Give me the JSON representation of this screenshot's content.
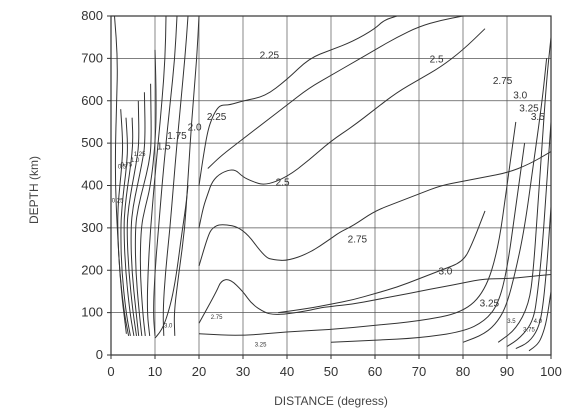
{
  "chart_data": {
    "type": "line",
    "title": "",
    "xlabel": "DISTANCE (degress)",
    "ylabel": "DEPTH (km)",
    "xlim": [
      0,
      100
    ],
    "ylim": [
      0,
      800
    ],
    "x_ticks": [
      0,
      10,
      20,
      30,
      40,
      50,
      60,
      70,
      80,
      90,
      100
    ],
    "y_ticks": [
      0,
      100,
      200,
      300,
      400,
      500,
      600,
      700,
      800
    ],
    "grid": true,
    "series": [
      {
        "name": "",
        "x": [
          0.8,
          1.5,
          1.3,
          1.0,
          1.0,
          1.4,
          2.3,
          3.5
        ],
        "y": [
          800,
          700,
          600,
          500,
          400,
          300,
          150,
          50
        ]
      },
      {
        "name": "",
        "x": [
          2.2,
          2.7,
          2.5,
          2.0,
          1.6,
          1.5,
          1.9,
          3.0,
          4.0
        ],
        "y": [
          580,
          500,
          450,
          400,
          350,
          300,
          200,
          100,
          45
        ]
      },
      {
        "name": "",
        "x": [
          3.4,
          3.8,
          3.6,
          3.0,
          2.5,
          2.2,
          2.4,
          3.4,
          4.4
        ],
        "y": [
          560,
          500,
          450,
          400,
          350,
          300,
          200,
          100,
          45
        ]
      },
      {
        "name": "",
        "x": [
          4.8,
          5.0,
          4.5,
          3.8,
          3.2,
          2.9,
          3.3,
          4.3,
          5.2
        ],
        "y": [
          560,
          500,
          450,
          400,
          350,
          300,
          200,
          100,
          45
        ]
      },
      {
        "name": "",
        "x": [
          6.2,
          6.4,
          5.7,
          4.8,
          4.0,
          3.6,
          4.0,
          5.0,
          5.8
        ],
        "y": [
          600,
          500,
          450,
          400,
          350,
          300,
          200,
          100,
          45
        ]
      },
      {
        "name": "",
        "x": [
          7.6,
          7.8,
          7.0,
          6.0,
          5.0,
          4.5,
          4.7,
          5.7,
          6.3
        ],
        "y": [
          620,
          500,
          450,
          400,
          350,
          300,
          200,
          100,
          45
        ]
      },
      {
        "name": "",
        "x": [
          9.0,
          9.2,
          8.6,
          7.4,
          6.2,
          5.5,
          5.6,
          6.4,
          7.0
        ],
        "y": [
          640,
          500,
          450,
          400,
          350,
          300,
          200,
          100,
          45
        ]
      },
      {
        "name": "",
        "x": [
          10.0,
          10.3,
          10.1,
          9.0,
          7.8,
          6.8,
          6.6,
          7.2,
          7.8
        ],
        "y": [
          720,
          600,
          500,
          400,
          350,
          300,
          200,
          100,
          45
        ]
      },
      {
        "name": "",
        "x": [
          12.5,
          12.3,
          11.6,
          10.7,
          9.8,
          9.0,
          8.4,
          8.2,
          8.8
        ],
        "y": [
          800,
          700,
          600,
          500,
          400,
          300,
          200,
          100,
          45
        ]
      },
      {
        "name": "",
        "x": [
          15.0,
          14.5,
          13.5,
          12.5,
          11.6,
          10.8,
          10.0,
          9.6,
          10.0
        ],
        "y": [
          800,
          700,
          600,
          500,
          400,
          300,
          200,
          100,
          45
        ]
      },
      {
        "name": "",
        "x": [
          17.5,
          16.8,
          15.9,
          15.0,
          14.2,
          13.4,
          12.4,
          11.8,
          12.0
        ],
        "y": [
          800,
          700,
          600,
          500,
          400,
          300,
          200,
          100,
          45
        ]
      },
      {
        "name": "",
        "x": [
          20.0,
          19.5,
          18.7,
          18.0,
          17.4,
          16.8,
          15.5,
          14.3,
          14.5
        ],
        "y": [
          800,
          700,
          600,
          500,
          400,
          300,
          200,
          100,
          45
        ]
      },
      {
        "name": "",
        "x": [
          10,
          11,
          12,
          13,
          14,
          15,
          16,
          17,
          17.5
        ],
        "y": [
          40,
          52,
          70,
          100,
          140,
          200,
          280,
          350,
          400
        ]
      },
      {
        "name": "",
        "x": [
          20,
          24,
          25,
          27,
          30,
          32,
          35,
          37,
          40,
          45,
          47,
          50,
          55,
          60,
          65,
          70,
          75,
          80,
          85,
          90,
          95,
          100
        ],
        "y": [
          75,
          150,
          175,
          180,
          150,
          120,
          100,
          95,
          97,
          105,
          110,
          115,
          120,
          130,
          140,
          150,
          160,
          170,
          180,
          180,
          185,
          190
        ]
      },
      {
        "name": "",
        "x": [
          20,
          22,
          23,
          25,
          30,
          35,
          37,
          40,
          45,
          50,
          52,
          55,
          60,
          65,
          70,
          75,
          80,
          85,
          90,
          95,
          100
        ],
        "y": [
          210,
          280,
          300,
          310,
          300,
          230,
          225,
          222,
          240,
          275,
          290,
          305,
          340,
          360,
          380,
          400,
          410,
          420,
          430,
          450,
          480
        ]
      },
      {
        "name": "",
        "x": [
          20,
          21,
          22,
          23,
          25,
          28,
          30,
          32,
          35,
          40,
          45,
          50,
          55,
          60,
          65,
          70,
          75,
          80,
          85
        ],
        "y": [
          300,
          350,
          380,
          410,
          430,
          440,
          420,
          410,
          400,
          420,
          460,
          505,
          540,
          580,
          620,
          650,
          680,
          720,
          770
        ]
      },
      {
        "name": "",
        "x": [
          20,
          21,
          22,
          23,
          24,
          25,
          27,
          30,
          35,
          40,
          45,
          50,
          55,
          60,
          62,
          65
        ],
        "y": [
          400,
          470,
          530,
          560,
          580,
          590,
          590,
          600,
          610,
          650,
          700,
          720,
          740,
          770,
          790,
          800
        ]
      },
      {
        "name": "",
        "x": [
          22,
          25,
          30,
          35,
          40,
          45,
          50,
          55,
          60,
          65,
          70,
          75,
          80
        ],
        "y": [
          440,
          470,
          510,
          550,
          590,
          630,
          660,
          690,
          720,
          750,
          775,
          790,
          800
        ]
      },
      {
        "name": "",
        "x": [
          38,
          45,
          50,
          55,
          60,
          65,
          70,
          75,
          80,
          82,
          85
        ],
        "y": [
          100,
          110,
          120,
          130,
          145,
          160,
          180,
          200,
          220,
          260,
          340
        ]
      },
      {
        "name": "",
        "x": [
          20,
          30,
          40,
          50,
          60,
          70,
          80,
          85,
          88,
          90,
          92
        ],
        "y": [
          50,
          45,
          55,
          60,
          70,
          80,
          100,
          150,
          250,
          400,
          550
        ]
      },
      {
        "name": "",
        "x": [
          50,
          60,
          70,
          80,
          85,
          88,
          90,
          92,
          94
        ],
        "y": [
          30,
          35,
          40,
          55,
          80,
          120,
          200,
          350,
          500
        ]
      },
      {
        "name": "",
        "x": [
          80,
          85,
          88,
          90,
          92,
          94,
          96,
          98,
          99
        ],
        "y": [
          30,
          50,
          80,
          120,
          200,
          300,
          450,
          600,
          700
        ]
      },
      {
        "name": "",
        "x": [
          88,
          92,
          95,
          96,
          97,
          98,
          99,
          100
        ],
        "y": [
          30,
          60,
          120,
          200,
          350,
          500,
          650,
          750
        ]
      },
      {
        "name": "",
        "x": [
          90,
          93,
          96,
          97,
          98,
          99,
          100
        ],
        "y": [
          20,
          40,
          80,
          150,
          250,
          400,
          550
        ]
      },
      {
        "name": "",
        "x": [
          92,
          95,
          97,
          98,
          99,
          100
        ],
        "y": [
          15,
          30,
          60,
          100,
          200,
          350
        ]
      },
      {
        "name": "",
        "x": [
          95,
          97,
          98,
          99,
          100
        ],
        "y": [
          10,
          25,
          45,
          80,
          150
        ]
      }
    ],
    "annotations": [
      {
        "text": "2.25",
        "x": 36,
        "y": 700
      },
      {
        "text": "2.5",
        "x": 74,
        "y": 690
      },
      {
        "text": "2.75",
        "x": 89,
        "y": 640
      },
      {
        "text": "3.0",
        "x": 93,
        "y": 605
      },
      {
        "text": "3.25",
        "x": 95,
        "y": 575
      },
      {
        "text": "3.5",
        "x": 97,
        "y": 555
      },
      {
        "text": "2.25",
        "x": 24,
        "y": 555
      },
      {
        "text": "2.0",
        "x": 19,
        "y": 530
      },
      {
        "text": "1.75",
        "x": 15,
        "y": 510
      },
      {
        "text": "1.5",
        "x": 12,
        "y": 485
      },
      {
        "text": "1.25",
        "x": 6.5,
        "y": 470
      },
      {
        "text": "1.0",
        "x": 5.5,
        "y": 455
      },
      {
        "text": "0.75",
        "x": 3.5,
        "y": 445
      },
      {
        "text": "0.5",
        "x": 2.5,
        "y": 440
      },
      {
        "text": "2.5",
        "x": 39,
        "y": 400
      },
      {
        "text": "2.75",
        "x": 56,
        "y": 265
      },
      {
        "text": "3.0",
        "x": 76,
        "y": 190
      },
      {
        "text": "3.25",
        "x": 86,
        "y": 115
      },
      {
        "text": "3.5",
        "x": 91,
        "y": 75
      },
      {
        "text": "3.75",
        "x": 95,
        "y": 55
      },
      {
        "text": "4.0",
        "x": 97,
        "y": 75
      },
      {
        "text": "0.25",
        "x": 1.5,
        "y": 360
      },
      {
        "text": "3.25",
        "x": 34,
        "y": 20
      },
      {
        "text": "2.75",
        "x": 24,
        "y": 85
      },
      {
        "text": "3.0",
        "x": 13,
        "y": 65
      }
    ]
  }
}
